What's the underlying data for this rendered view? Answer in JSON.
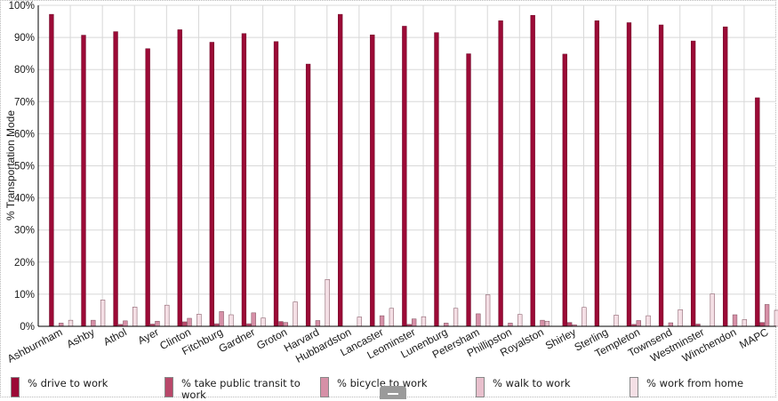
{
  "chart_data": {
    "type": "bar",
    "ylabel": "% Transportation Mode",
    "ylim": [
      0,
      100
    ],
    "yticks": [
      "0%",
      "10%",
      "20%",
      "30%",
      "40%",
      "50%",
      "60%",
      "70%",
      "80%",
      "90%",
      "100%"
    ],
    "grid": true,
    "legend_position": "bottom",
    "categories": [
      "Ashburnham",
      "Ashby",
      "Athol",
      "Ayer",
      "Clinton",
      "Fitchburg",
      "Gardner",
      "Groton",
      "Harvard",
      "Hubbardston",
      "Lancaster",
      "Leominster",
      "Lunenburg",
      "Petersham",
      "Phillipston",
      "Royalston",
      "Shirley",
      "Sterling",
      "Templeton",
      "Townsend",
      "Westminster",
      "Winchendon",
      "MAPC"
    ],
    "series": [
      {
        "name": "% drive to work",
        "color": "#9b0a36",
        "values": [
          97.2,
          90.7,
          91.8,
          86.5,
          92.4,
          88.5,
          91.2,
          88.7,
          81.7,
          97.2,
          90.8,
          93.5,
          91.5,
          84.9,
          95.2,
          96.9,
          84.8,
          95.2,
          94.6,
          93.9,
          88.9,
          93.3,
          71.2
        ]
      },
      {
        "name": "% take public transit to work",
        "color": "#b8486a",
        "values": [
          0,
          0,
          0.6,
          0.7,
          1.4,
          0.8,
          0.8,
          1.5,
          0,
          0,
          0,
          0.6,
          0,
          0,
          0,
          0,
          1.2,
          0,
          0.6,
          0,
          0.7,
          0,
          1.2
        ]
      },
      {
        "name": "% bicycle to work",
        "color": "#d690a7",
        "values": [
          1.0,
          1.9,
          1.7,
          1.6,
          2.5,
          4.6,
          4.2,
          1.2,
          1.8,
          0,
          3.3,
          2.3,
          1.0,
          3.9,
          1.0,
          1.9,
          0.5,
          0,
          1.8,
          1.1,
          0,
          3.6,
          6.8
        ]
      },
      {
        "name": "% walk to work",
        "color": "#e8c0cd",
        "values": [
          0,
          0,
          0,
          0,
          0,
          0,
          0,
          0,
          0,
          0,
          0,
          0,
          0,
          0,
          0,
          1.6,
          0,
          0,
          0,
          0,
          0,
          0,
          0
        ]
      },
      {
        "name": "% work from home",
        "color": "#f4dfe5",
        "values": [
          1.9,
          8.2,
          6.0,
          6.6,
          3.8,
          3.6,
          2.6,
          7.6,
          14.6,
          2.9,
          5.6,
          3.0,
          5.6,
          9.8,
          3.7,
          0,
          5.9,
          3.5,
          3.3,
          5.2,
          10.1,
          2.1,
          5.0
        ]
      }
    ]
  }
}
